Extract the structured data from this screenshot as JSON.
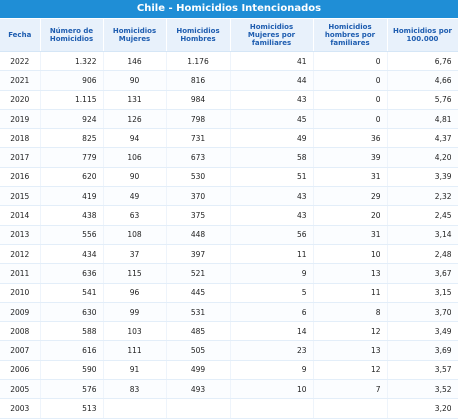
{
  "title": "Chile - Homicidios Intencionados",
  "headers": [
    "Fecha",
    "Número de Homicidios",
    "Homicidios Mujeres",
    "Homicidios Hombres",
    "Homicidios Mujeres por familiares",
    "Homicidios hombres por familiares",
    "Homicidios por 100.000"
  ],
  "rows": [
    [
      "2022",
      "1.322",
      "146",
      "1.176",
      "41",
      "0",
      "6,76"
    ],
    [
      "2021",
      "906",
      "90",
      "816",
      "44",
      "0",
      "4,66"
    ],
    [
      "2020",
      "1.115",
      "131",
      "984",
      "43",
      "0",
      "5,76"
    ],
    [
      "2019",
      "924",
      "126",
      "798",
      "45",
      "0",
      "4,81"
    ],
    [
      "2018",
      "825",
      "94",
      "731",
      "49",
      "36",
      "4,37"
    ],
    [
      "2017",
      "779",
      "106",
      "673",
      "58",
      "39",
      "4,20"
    ],
    [
      "2016",
      "620",
      "90",
      "530",
      "51",
      "31",
      "3,39"
    ],
    [
      "2015",
      "419",
      "49",
      "370",
      "43",
      "29",
      "2,32"
    ],
    [
      "2014",
      "438",
      "63",
      "375",
      "43",
      "20",
      "2,45"
    ],
    [
      "2013",
      "556",
      "108",
      "448",
      "56",
      "31",
      "3,14"
    ],
    [
      "2012",
      "434",
      "37",
      "397",
      "11",
      "10",
      "2,48"
    ],
    [
      "2011",
      "636",
      "115",
      "521",
      "9",
      "13",
      "3,67"
    ],
    [
      "2010",
      "541",
      "96",
      "445",
      "5",
      "11",
      "3,15"
    ],
    [
      "2009",
      "630",
      "99",
      "531",
      "6",
      "8",
      "3,70"
    ],
    [
      "2008",
      "588",
      "103",
      "485",
      "14",
      "12",
      "3,49"
    ],
    [
      "2007",
      "616",
      "111",
      "505",
      "23",
      "13",
      "3,69"
    ],
    [
      "2006",
      "590",
      "91",
      "499",
      "9",
      "12",
      "3,57"
    ],
    [
      "2005",
      "576",
      "83",
      "493",
      "10",
      "7",
      "3,52"
    ],
    [
      "2003",
      "513",
      "",
      "",
      "",
      "",
      "3,20"
    ]
  ]
}
